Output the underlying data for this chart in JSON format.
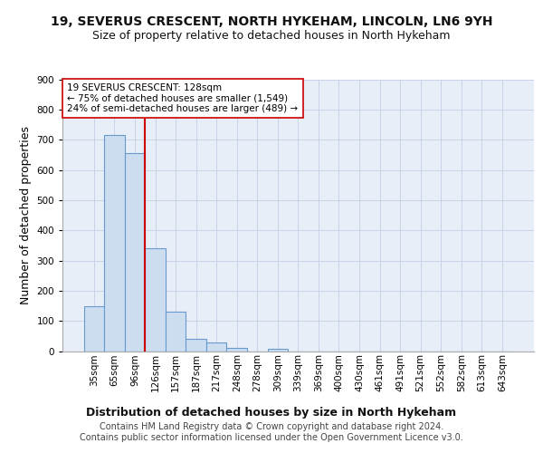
{
  "title_line1": "19, SEVERUS CRESCENT, NORTH HYKEHAM, LINCOLN, LN6 9YH",
  "title_line2": "Size of property relative to detached houses in North Hykeham",
  "xlabel": "Distribution of detached houses by size in North Hykeham",
  "ylabel": "Number of detached properties",
  "categories": [
    "35sqm",
    "65sqm",
    "96sqm",
    "126sqm",
    "157sqm",
    "187sqm",
    "217sqm",
    "248sqm",
    "278sqm",
    "309sqm",
    "339sqm",
    "369sqm",
    "400sqm",
    "430sqm",
    "461sqm",
    "491sqm",
    "521sqm",
    "552sqm",
    "582sqm",
    "613sqm",
    "643sqm"
  ],
  "values": [
    150,
    715,
    655,
    340,
    130,
    42,
    30,
    12,
    0,
    9,
    0,
    0,
    0,
    0,
    0,
    0,
    0,
    0,
    0,
    0,
    0
  ],
  "bar_color": "#ccddf0",
  "bar_edge_color": "#6699cc",
  "vline_color": "#cc0000",
  "annotation_text": "19 SEVERUS CRESCENT: 128sqm\n← 75% of detached houses are smaller (1,549)\n24% of semi-detached houses are larger (489) →",
  "annotation_box_color": "#ffffff",
  "annotation_box_edge": "#cc0000",
  "ylim": [
    0,
    900
  ],
  "yticks": [
    0,
    100,
    200,
    300,
    400,
    500,
    600,
    700,
    800,
    900
  ],
  "footer_text": "Contains HM Land Registry data © Crown copyright and database right 2024.\nContains public sector information licensed under the Open Government Licence v3.0.",
  "title_fontsize": 10,
  "subtitle_fontsize": 9,
  "axis_label_fontsize": 9,
  "tick_fontsize": 7.5,
  "footer_fontsize": 7,
  "background_color": "#ffffff",
  "grid_color": "#c8d4e8",
  "axes_bg_color": "#e8eef8"
}
